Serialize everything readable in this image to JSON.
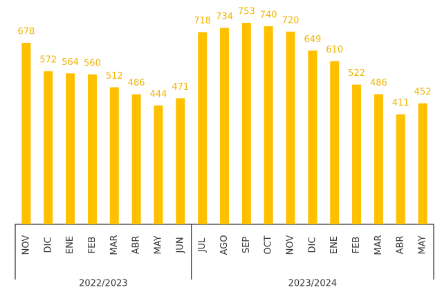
{
  "chart_data": {
    "type": "bar",
    "color": "#FFC000",
    "label_color": "#F0B400",
    "groups": [
      {
        "name": "2022/2023",
        "categories": [
          "NOV",
          "DIC",
          "ENE",
          "FEB",
          "MAR",
          "ABR",
          "MAY",
          "JUN"
        ],
        "values": [
          678,
          572,
          564,
          560,
          512,
          486,
          444,
          471
        ]
      },
      {
        "name": "2023/2024",
        "categories": [
          "JUL",
          "AGO",
          "SEP",
          "OCT",
          "NOV",
          "DIC",
          "ENE",
          "FEB",
          "MAR",
          "ABR",
          "MAY"
        ],
        "values": [
          718,
          734,
          753,
          740,
          720,
          649,
          610,
          522,
          486,
          411,
          452
        ]
      }
    ]
  }
}
